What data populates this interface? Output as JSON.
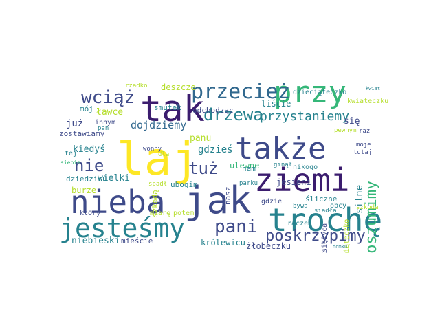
{
  "palette": {
    "purple": "#3b1c6e",
    "indigo": "#3e4a89",
    "blue": "#31688e",
    "teal": "#26828e",
    "green": "#35b779",
    "lime": "#6ece58",
    "yellow": "#fde725",
    "khaki": "#b5de2b",
    "paleYellow": "#e8e05a"
  },
  "words": [
    "przy",
    "tak",
    "także",
    "laj",
    "ziemi",
    "jak",
    "nieba",
    "trochę",
    "jesteśmy",
    "przecież",
    "wciąż",
    "drzewa",
    "poszumimy",
    "pani",
    "poskrzypimy",
    "nie",
    "tuż",
    "przystaniemy",
    "dojdziemy",
    "deszcze",
    "liście",
    "rzadko",
    "mój",
    "ławce",
    "smutek",
    "już",
    "odchodząc",
    "zostawiamy",
    "innym",
    "pan",
    "kiedyś",
    "gdzieś",
    "panu",
    "się",
    "moje",
    "tutaj",
    "dziedzicu",
    "wielki",
    "burze",
    "ubogim",
    "ulewne",
    "ginął",
    "nam",
    "nikogo",
    "silne",
    "jesieni",
    "parku",
    "szkodą",
    "spadł",
    "gdzie",
    "śliczne",
    "obcy",
    "bywa",
    "siadła",
    "szkoda",
    "niebieski",
    "mieście",
    "królewicu",
    "tylko",
    "żłobeczku",
    "raczej",
    "miarę",
    "potem",
    "który",
    "kwiateczku",
    "dzieciąteczko",
    "pewnym",
    "raz",
    "wonny",
    "nasz",
    "dla",
    "tej",
    "siebie",
    "księżyca",
    "pamiąteczko",
    "kwiat",
    "domku"
  ]
}
